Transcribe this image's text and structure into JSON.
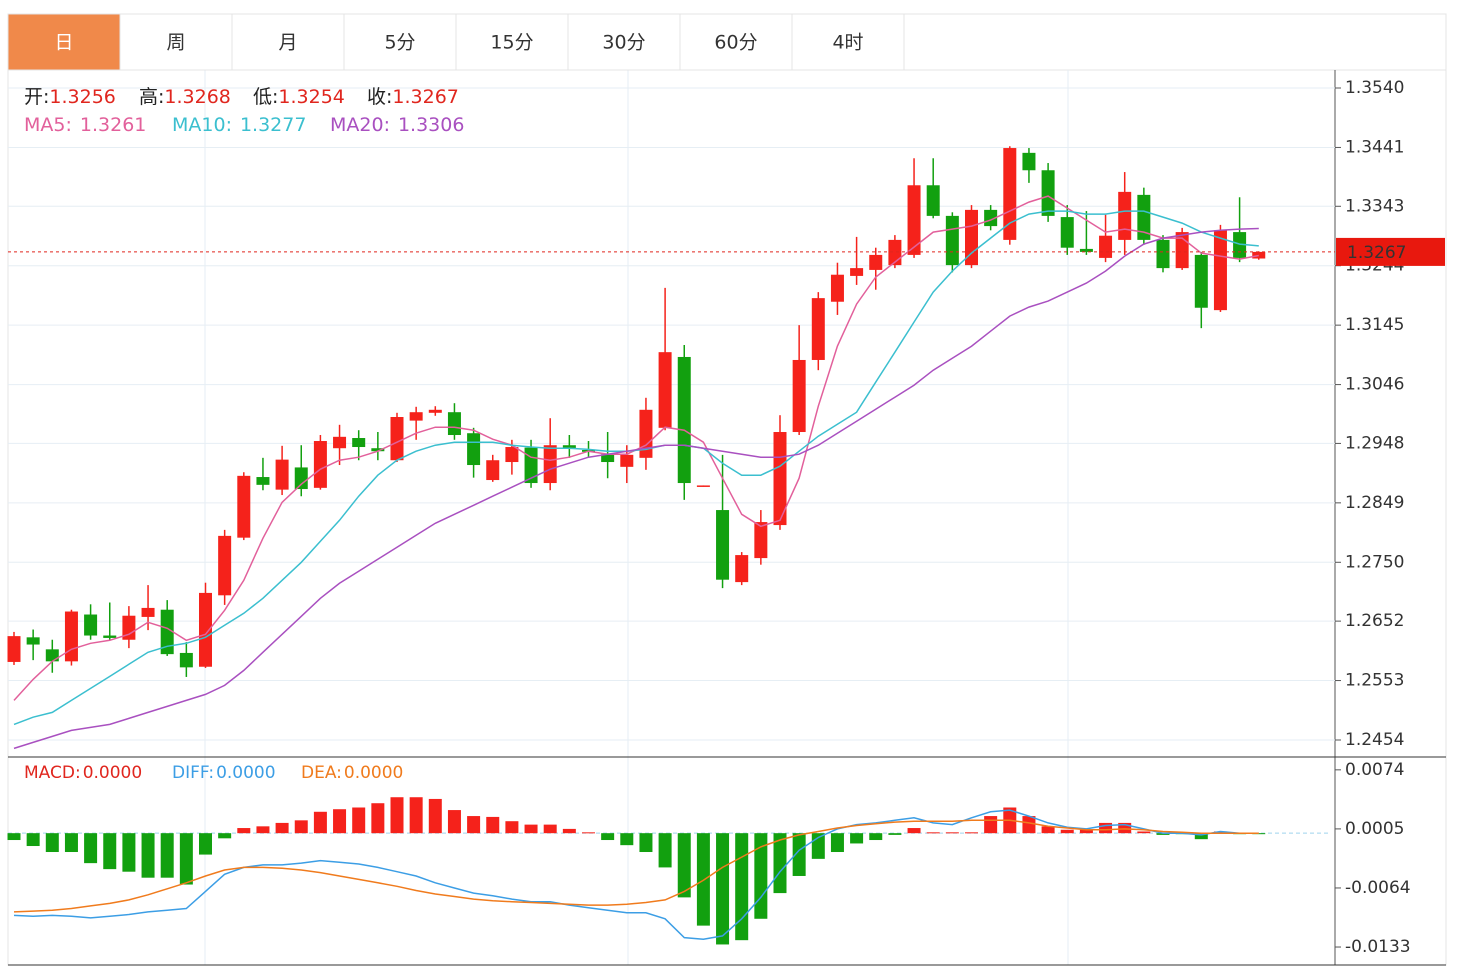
{
  "tabs": [
    "日",
    "周",
    "月",
    "5分",
    "15分",
    "30分",
    "60分",
    "4时"
  ],
  "active_tab": 0,
  "chart_data": [
    {
      "type": "candlestick",
      "info": [
        {
          "label": "开:",
          "value": 1.3256
        },
        {
          "label": "高:",
          "value": 1.3268
        },
        {
          "label": "低:",
          "value": 1.3254
        },
        {
          "label": "收:",
          "value": 1.3267
        }
      ],
      "up_color": "#f5221b",
      "down_color": "#12a00f",
      "open": [
        1.2584,
        1.2625,
        1.2605,
        1.2585,
        1.2663,
        1.2628,
        1.2621,
        1.2659,
        1.2671,
        1.2599,
        1.2576,
        1.2695,
        1.2791,
        1.2892,
        1.2871,
        1.2908,
        1.2874,
        1.294,
        1.2957,
        1.294,
        1.292,
        1.2986,
        1.2999,
        1.3,
        1.2965,
        1.2887,
        1.2917,
        1.2941,
        1.2882,
        1.2945,
        1.2937,
        1.293,
        1.2909,
        1.2924,
        1.2974,
        1.3092,
        1.2877,
        1.2837,
        1.2717,
        1.2757,
        1.2812,
        1.2967,
        1.3087,
        1.3184,
        1.3227,
        1.3237,
        1.3245,
        1.3262,
        1.3378,
        1.3327,
        1.3245,
        1.3337,
        1.3287,
        1.3432,
        1.3403,
        1.3325,
        1.3272,
        1.3257,
        1.3287,
        1.3362,
        1.3287,
        1.324,
        1.3262,
        1.317,
        1.33,
        1.3256
      ],
      "high": [
        1.2634,
        1.2638,
        1.2621,
        1.2671,
        1.268,
        1.2683,
        1.2677,
        1.2712,
        1.2687,
        1.2617,
        1.2716,
        1.2804,
        1.29,
        1.2924,
        1.2944,
        1.2945,
        1.2962,
        1.2979,
        1.297,
        1.2967,
        1.2999,
        1.3009,
        1.301,
        1.3015,
        1.2974,
        1.2929,
        1.2954,
        1.2954,
        1.299,
        1.2962,
        1.2952,
        1.2967,
        1.2945,
        1.3024,
        1.3207,
        1.3112,
        1.2878,
        1.2929,
        1.2767,
        1.2837,
        1.2995,
        1.3145,
        1.32,
        1.3249,
        1.3292,
        1.3274,
        1.3295,
        1.3423,
        1.3423,
        1.3333,
        1.3345,
        1.3345,
        1.3443,
        1.344,
        1.3415,
        1.3345,
        1.3335,
        1.3329,
        1.34,
        1.3374,
        1.3295,
        1.3307,
        1.3267,
        1.3312,
        1.3358,
        1.3268
      ],
      "low": [
        1.2579,
        1.2587,
        1.2566,
        1.2578,
        1.2621,
        1.2621,
        1.2607,
        1.2637,
        1.2594,
        1.2559,
        1.2574,
        1.2679,
        1.2787,
        1.287,
        1.2862,
        1.286,
        1.2871,
        1.2912,
        1.292,
        1.292,
        1.2917,
        1.2954,
        1.2994,
        1.2954,
        1.2891,
        1.2884,
        1.2896,
        1.2874,
        1.287,
        1.2924,
        1.2925,
        1.289,
        1.2882,
        1.2904,
        1.297,
        1.2854,
        1.2876,
        1.2707,
        1.2712,
        1.2746,
        1.2804,
        1.2962,
        1.307,
        1.3162,
        1.3212,
        1.3204,
        1.324,
        1.3257,
        1.3323,
        1.3233,
        1.324,
        1.3303,
        1.3279,
        1.3382,
        1.3317,
        1.3262,
        1.3262,
        1.325,
        1.3262,
        1.3279,
        1.3233,
        1.3237,
        1.314,
        1.3167,
        1.325,
        1.3254
      ],
      "close": [
        1.2627,
        1.2613,
        1.2585,
        1.2668,
        1.2628,
        1.2624,
        1.2661,
        1.2674,
        1.2597,
        1.2575,
        1.2699,
        1.2794,
        1.2894,
        1.2879,
        1.2921,
        1.2872,
        1.2952,
        1.2959,
        1.2942,
        1.2935,
        1.2992,
        1.3,
        1.3004,
        1.2962,
        1.2912,
        1.292,
        1.2942,
        1.2882,
        1.2945,
        1.2939,
        1.2934,
        1.2917,
        1.2929,
        1.3004,
        1.31,
        1.2882,
        1.2878,
        1.2721,
        1.2762,
        1.2817,
        1.2967,
        1.3087,
        1.319,
        1.3229,
        1.324,
        1.3262,
        1.3287,
        1.3378,
        1.3327,
        1.3245,
        1.3337,
        1.331,
        1.344,
        1.3403,
        1.3327,
        1.3274,
        1.3267,
        1.3294,
        1.3367,
        1.3287,
        1.324,
        1.33,
        1.3174,
        1.3303,
        1.3257,
        1.3267
      ],
      "series": [
        {
          "name": "MA5:",
          "value": 1.3261,
          "color": "#e2609b",
          "values": [
            1.252,
            1.2555,
            1.2585,
            1.2605,
            1.2615,
            1.262,
            1.263,
            1.265,
            1.264,
            1.262,
            1.263,
            1.267,
            1.272,
            1.279,
            1.285,
            1.288,
            1.2905,
            1.292,
            1.2925,
            1.2935,
            1.295,
            1.2965,
            1.2975,
            1.2975,
            1.297,
            1.2955,
            1.2945,
            1.2925,
            1.292,
            1.2925,
            1.2935,
            1.293,
            1.293,
            1.2945,
            1.2975,
            1.297,
            1.295,
            1.289,
            1.283,
            1.281,
            1.282,
            1.289,
            1.301,
            1.311,
            1.318,
            1.3225,
            1.325,
            1.3275,
            1.33,
            1.3305,
            1.331,
            1.332,
            1.3335,
            1.335,
            1.336,
            1.334,
            1.332,
            1.33,
            1.3305,
            1.33,
            1.329,
            1.329,
            1.3265,
            1.326,
            1.3255,
            1.3261
          ]
        },
        {
          "name": "MA10:",
          "value": 1.3277,
          "color": "#3bbfcf",
          "values": [
            1.248,
            1.2492,
            1.25,
            1.252,
            1.254,
            1.256,
            1.258,
            1.26,
            1.261,
            1.2615,
            1.2625,
            1.2645,
            1.2665,
            1.269,
            1.272,
            1.275,
            1.2785,
            1.282,
            1.286,
            1.2895,
            1.292,
            1.2935,
            1.2945,
            1.295,
            1.295,
            1.295,
            1.2945,
            1.2942,
            1.294,
            1.294,
            1.2938,
            1.2935,
            1.2935,
            1.2938,
            1.2945,
            1.2945,
            1.294,
            1.2915,
            1.2895,
            1.2895,
            1.291,
            1.2935,
            1.296,
            1.298,
            1.3,
            1.305,
            1.31,
            1.315,
            1.32,
            1.3235,
            1.3265,
            1.329,
            1.3315,
            1.333,
            1.3335,
            1.3335,
            1.333,
            1.333,
            1.3335,
            1.3335,
            1.3325,
            1.3315,
            1.33,
            1.329,
            1.328,
            1.3277
          ]
        },
        {
          "name": "MA20:",
          "value": 1.3306,
          "color": "#a950c0",
          "values": [
            1.244,
            1.245,
            1.246,
            1.247,
            1.2475,
            1.248,
            1.249,
            1.25,
            1.251,
            1.252,
            1.253,
            1.2545,
            1.257,
            1.26,
            1.263,
            1.266,
            1.269,
            1.2715,
            1.2735,
            1.2755,
            1.2775,
            1.2795,
            1.2815,
            1.283,
            1.2845,
            1.286,
            1.2875,
            1.289,
            1.2905,
            1.2915,
            1.2925,
            1.293,
            1.2935,
            1.294,
            1.2945,
            1.2945,
            1.294,
            1.2935,
            1.293,
            1.2925,
            1.2925,
            1.293,
            1.2945,
            1.2965,
            1.2985,
            1.3005,
            1.3025,
            1.3045,
            1.307,
            1.309,
            1.311,
            1.3135,
            1.316,
            1.3175,
            1.3185,
            1.32,
            1.3215,
            1.3235,
            1.326,
            1.328,
            1.329,
            1.3295,
            1.33,
            1.3303,
            1.3305,
            1.3306
          ]
        }
      ],
      "last_price": 1.3267,
      "ylim": [
        1.2429,
        1.357
      ],
      "yticks": [
        {
          "value": 1.354,
          "label": "1.3540"
        },
        1.3441,
        1.3343,
        1.3244,
        1.3145,
        1.3046,
        1.2948,
        1.2849,
        {
          "value": 1.275,
          "label": "1.2750"
        },
        1.2652,
        1.2553,
        1.2454
      ],
      "grid": true
    },
    {
      "type": "macd",
      "series": [
        {
          "name": "MACD:",
          "value": 0,
          "value_label": "0.0000",
          "color": "#e0261e",
          "style": "histogram",
          "up_color": "#f5221b",
          "down_color": "#12a00f",
          "values": [
            -0.0008,
            -0.0015,
            -0.0022,
            -0.0022,
            -0.0035,
            -0.0042,
            -0.0045,
            -0.0052,
            -0.0052,
            -0.006,
            -0.0025,
            -0.0006,
            0.0006,
            0.0008,
            0.0012,
            0.0015,
            0.0025,
            0.0028,
            0.003,
            0.0035,
            0.0042,
            0.0042,
            0.004,
            0.0027,
            0.002,
            0.0019,
            0.0014,
            0.001,
            0.001,
            0.0005,
            0.0001,
            -0.0008,
            -0.0014,
            -0.0022,
            -0.004,
            -0.0075,
            -0.0108,
            -0.013,
            -0.0125,
            -0.01,
            -0.007,
            -0.005,
            -0.003,
            -0.0022,
            -0.0012,
            -0.0008,
            -0.0002,
            0.0006,
            0.0001,
            0.0001,
            0.0001,
            0.002,
            0.003,
            0.002,
            0.0008,
            0.0004,
            0.0004,
            0.0012,
            0.0012,
            0.0002,
            -0.0002,
            -0.0001,
            -0.0007,
            0.0002,
            -0.0001,
            -0.0001
          ]
        },
        {
          "name": "DIFF:",
          "value": 0,
          "value_label": "0.0000",
          "color": "#3c9ee5",
          "style": "line",
          "values": [
            -0.0096,
            -0.0097,
            -0.0096,
            -0.0097,
            -0.0099,
            -0.0097,
            -0.0095,
            -0.0092,
            -0.009,
            -0.0088,
            -0.0068,
            -0.0048,
            -0.004,
            -0.0037,
            -0.0037,
            -0.0035,
            -0.0032,
            -0.0034,
            -0.0036,
            -0.004,
            -0.0045,
            -0.005,
            -0.0058,
            -0.0064,
            -0.007,
            -0.0073,
            -0.0077,
            -0.008,
            -0.008,
            -0.0084,
            -0.0087,
            -0.009,
            -0.0093,
            -0.0093,
            -0.01,
            -0.0122,
            -0.0124,
            -0.012,
            -0.01,
            -0.0075,
            -0.0045,
            -0.002,
            -0.0005,
            0.0005,
            0.001,
            0.0012,
            0.0015,
            0.0018,
            0.0012,
            0.001,
            0.0018,
            0.0025,
            0.0027,
            0.002,
            0.0012,
            0.0007,
            0.0005,
            0.0009,
            0.001,
            0.0005,
            0.0,
            0.0,
            -0.0002,
            0.0002,
            0.0,
            0.0
          ]
        },
        {
          "name": "DEA:",
          "value": 0,
          "value_label": "0.0000",
          "color": "#f07b1d",
          "style": "line",
          "values": [
            -0.0092,
            -0.0091,
            -0.009,
            -0.0088,
            -0.0085,
            -0.0082,
            -0.0078,
            -0.0072,
            -0.0065,
            -0.0058,
            -0.005,
            -0.0043,
            -0.004,
            -0.004,
            -0.0041,
            -0.0043,
            -0.0046,
            -0.005,
            -0.0054,
            -0.0058,
            -0.0062,
            -0.0067,
            -0.0071,
            -0.0074,
            -0.0077,
            -0.0079,
            -0.008,
            -0.0081,
            -0.0082,
            -0.0083,
            -0.0084,
            -0.0084,
            -0.0083,
            -0.0081,
            -0.0078,
            -0.0068,
            -0.0055,
            -0.004,
            -0.0028,
            -0.0016,
            -0.0008,
            -0.0002,
            0.0002,
            0.0006,
            0.0009,
            0.0011,
            0.0013,
            0.0014,
            0.0014,
            0.0014,
            0.0015,
            0.0015,
            0.0015,
            0.0012,
            0.0008,
            0.0006,
            0.0004,
            0.0004,
            0.0005,
            0.0004,
            0.0002,
            0.0001,
            0.0,
            0.0,
            0.0,
            0.0
          ]
        }
      ],
      "ylim": [
        -0.0154,
        0.0089
      ],
      "yticks": [
        0.0074,
        0.0005,
        -0.0064,
        -0.0133
      ]
    }
  ]
}
